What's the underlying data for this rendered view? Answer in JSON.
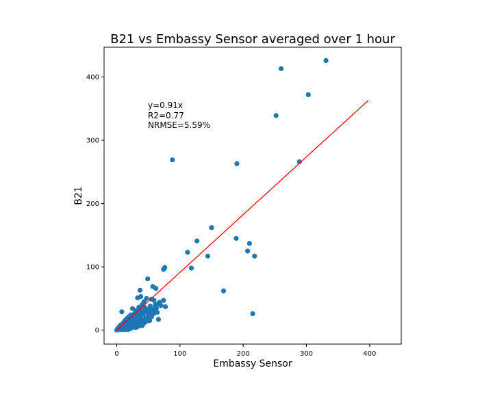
{
  "chart_data": {
    "type": "scatter",
    "title": "B21 vs Embassy Sensor averaged over 1 hour",
    "xlabel": "Embassy Sensor",
    "ylabel": "B21",
    "xlim": [
      -20,
      450
    ],
    "ylim": [
      -22,
      447
    ],
    "xticks": [
      0,
      100,
      200,
      300,
      400
    ],
    "yticks": [
      0,
      100,
      200,
      300,
      400
    ],
    "grid": false,
    "colors": {
      "points": "#1f77b4",
      "fit_line": "#ff0000"
    },
    "annotation": [
      "y=0.91x",
      "R2=0.77",
      "NRMSE=5.59%"
    ],
    "fit_line": {
      "x": [
        0,
        398
      ],
      "y": [
        0,
        363
      ]
    },
    "points": [
      [
        331,
        426
      ],
      [
        260,
        413
      ],
      [
        303,
        372
      ],
      [
        252,
        339
      ],
      [
        289,
        266
      ],
      [
        190,
        263
      ],
      [
        88,
        269
      ],
      [
        150,
        162
      ],
      [
        127,
        141
      ],
      [
        189,
        145
      ],
      [
        210,
        137
      ],
      [
        207,
        125
      ],
      [
        218,
        117
      ],
      [
        112,
        123
      ],
      [
        144,
        117
      ],
      [
        118,
        98
      ],
      [
        76,
        99
      ],
      [
        74,
        96
      ],
      [
        49,
        81
      ],
      [
        169,
        62
      ],
      [
        215,
        26
      ],
      [
        57,
        69
      ],
      [
        62,
        66
      ],
      [
        37,
        63
      ],
      [
        47,
        50
      ],
      [
        55,
        49
      ],
      [
        59,
        47
      ],
      [
        66,
        42
      ],
      [
        74,
        47
      ],
      [
        77,
        37
      ],
      [
        33,
        51
      ],
      [
        38,
        53
      ],
      [
        43,
        45
      ],
      [
        40,
        40
      ],
      [
        35,
        36
      ],
      [
        44,
        36
      ],
      [
        48,
        33
      ],
      [
        53,
        38
      ],
      [
        57,
        30
      ],
      [
        61,
        40
      ],
      [
        64,
        28
      ],
      [
        66,
        17
      ],
      [
        52,
        15
      ],
      [
        47,
        14
      ],
      [
        41,
        15
      ],
      [
        25,
        34
      ],
      [
        8,
        29
      ],
      [
        19,
        21
      ],
      [
        22,
        24
      ],
      [
        28,
        26
      ],
      [
        30,
        31
      ],
      [
        31,
        20
      ],
      [
        34,
        28
      ],
      [
        36,
        22
      ],
      [
        39,
        18
      ],
      [
        42,
        25
      ],
      [
        45,
        29
      ],
      [
        50,
        24
      ],
      [
        55,
        21
      ],
      [
        58,
        26
      ],
      [
        27,
        17
      ],
      [
        24,
        14
      ],
      [
        21,
        12
      ],
      [
        18,
        15
      ],
      [
        16,
        10
      ],
      [
        14,
        13
      ],
      [
        12,
        8
      ],
      [
        10,
        11
      ],
      [
        9,
        5
      ],
      [
        7,
        7
      ],
      [
        6,
        3
      ],
      [
        5,
        4
      ],
      [
        4,
        1
      ],
      [
        3,
        2
      ],
      [
        2,
        1
      ],
      [
        1,
        1
      ],
      [
        0,
        0
      ],
      [
        11,
        2
      ],
      [
        13,
        4
      ],
      [
        15,
        6
      ],
      [
        17,
        3
      ],
      [
        19,
        7
      ],
      [
        20,
        5
      ],
      [
        22,
        9
      ],
      [
        23,
        3
      ],
      [
        25,
        8
      ],
      [
        26,
        11
      ],
      [
        28,
        6
      ],
      [
        29,
        13
      ],
      [
        31,
        9
      ],
      [
        32,
        15
      ],
      [
        33,
        11
      ],
      [
        35,
        14
      ],
      [
        37,
        12
      ],
      [
        30,
        4
      ],
      [
        34,
        6
      ],
      [
        38,
        9
      ],
      [
        40,
        7
      ],
      [
        43,
        11
      ],
      [
        46,
        19
      ],
      [
        49,
        17
      ],
      [
        51,
        28
      ],
      [
        54,
        33
      ],
      [
        56,
        25
      ],
      [
        60,
        34
      ],
      [
        63,
        35
      ],
      [
        68,
        44
      ],
      [
        70,
        39
      ],
      [
        42,
        32
      ],
      [
        39,
        30
      ],
      [
        36,
        27
      ],
      [
        33,
        24
      ],
      [
        29,
        22
      ],
      [
        26,
        20
      ],
      [
        23,
        18
      ],
      [
        20,
        16
      ],
      [
        17,
        19
      ],
      [
        15,
        17
      ],
      [
        13,
        15
      ],
      [
        11,
        12
      ],
      [
        9,
        9
      ],
      [
        8,
        6
      ],
      [
        6,
        8
      ],
      [
        5,
        6
      ],
      [
        4,
        5
      ],
      [
        3,
        4
      ],
      [
        10,
        1
      ],
      [
        12,
        2
      ],
      [
        14,
        1
      ],
      [
        16,
        2
      ],
      [
        18,
        1
      ],
      [
        20,
        2
      ],
      [
        7,
        1
      ],
      [
        5,
        2
      ],
      [
        2,
        3
      ]
    ]
  }
}
